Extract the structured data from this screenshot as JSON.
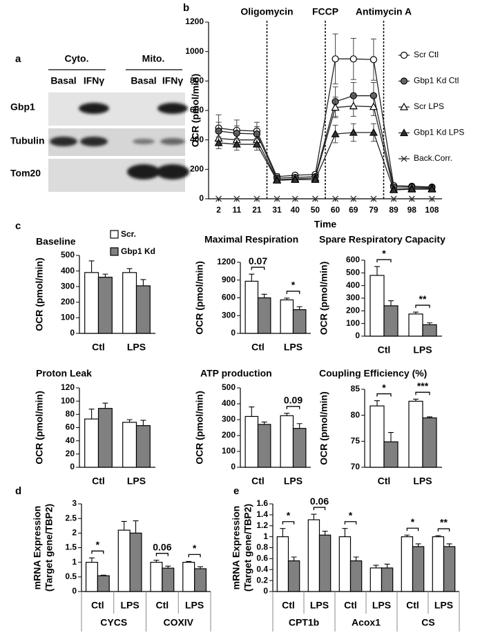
{
  "blot": {
    "panel": "a",
    "groups": [
      "Cyto.",
      "Mito."
    ],
    "lanes": [
      "Basal",
      "IFNγ",
      "Basal",
      "IFNγ"
    ],
    "rows": [
      "Gbp1",
      "Tubulin",
      "Tom20"
    ]
  },
  "chart_data": [
    {
      "type": "line",
      "panel": "b",
      "x_label": "Time",
      "y_label": "OCR (pmol/min)",
      "x": [
        2,
        11,
        21,
        31,
        40,
        50,
        60,
        69,
        79,
        89,
        98,
        108
      ],
      "xlim": [
        -3,
        113
      ],
      "xticks": [
        2,
        11,
        21,
        31,
        40,
        50,
        60,
        69,
        79,
        89,
        98,
        108
      ],
      "ylim": [
        0,
        1200
      ],
      "yticks": [
        0,
        200,
        400,
        600,
        800,
        1000,
        1200
      ],
      "annotations": [
        {
          "text": "Oligomycin",
          "x": 26
        },
        {
          "text": "FCCP",
          "x": 55
        },
        {
          "text": "Antimycin A",
          "x": 84
        }
      ],
      "legend": "upper right",
      "series": [
        {
          "name": "Scr Ctl",
          "marker": "circle",
          "color": "#ffffff",
          "values": [
            480,
            465,
            460,
            150,
            160,
            165,
            950,
            950,
            945,
            90,
            85,
            80
          ],
          "errors": [
            90,
            70,
            60,
            20,
            15,
            15,
            170,
            140,
            140,
            15,
            10,
            10
          ]
        },
        {
          "name": "Gbp1 Kd Ctl",
          "marker": "circle",
          "color": "#666666",
          "values": [
            460,
            445,
            440,
            140,
            145,
            150,
            660,
            700,
            700,
            80,
            80,
            75
          ],
          "errors": [
            60,
            50,
            50,
            15,
            15,
            15,
            100,
            90,
            90,
            10,
            10,
            10
          ]
        },
        {
          "name": "Scr LPS",
          "marker": "triangle",
          "color": "#ffffff",
          "values": [
            410,
            400,
            400,
            130,
            135,
            140,
            620,
            630,
            625,
            65,
            70,
            70
          ],
          "errors": [
            50,
            40,
            40,
            15,
            15,
            15,
            70,
            70,
            60,
            10,
            10,
            10
          ]
        },
        {
          "name": "Gbp1 Kd LPS",
          "marker": "triangle",
          "color": "#333333",
          "values": [
            380,
            370,
            370,
            125,
            130,
            130,
            440,
            450,
            450,
            60,
            65,
            65
          ],
          "errors": [
            40,
            40,
            40,
            10,
            10,
            10,
            60,
            60,
            60,
            10,
            10,
            10
          ]
        },
        {
          "name": "Back.Corr.",
          "marker": "x",
          "color": "#333333",
          "values": [
            0,
            0,
            0,
            0,
            0,
            0,
            0,
            0,
            0,
            0,
            0,
            0
          ]
        }
      ]
    },
    {
      "type": "bar",
      "panel": "c",
      "title": "Baseline",
      "y_label": "OCR (pmol/min)",
      "categories": [
        "Ctl",
        "LPS"
      ],
      "ylim": [
        0,
        500
      ],
      "yticks": [
        0,
        100,
        200,
        300,
        400,
        500
      ],
      "series": [
        {
          "name": "Scr.",
          "color": "#ffffff",
          "values": [
            390,
            390
          ],
          "errors": [
            75,
            25
          ]
        },
        {
          "name": "Gbp1 Kd",
          "color": "#808080",
          "values": [
            360,
            305
          ],
          "errors": [
            20,
            40
          ]
        }
      ]
    },
    {
      "type": "bar",
      "title": "Maximal Respiration",
      "y_label": "OCR (pmol/min)",
      "categories": [
        "Ctl",
        "LPS"
      ],
      "ylim": [
        0,
        1200
      ],
      "yticks": [
        0,
        300,
        600,
        900,
        1200
      ],
      "significance": [
        "0.07",
        "*"
      ],
      "series": [
        {
          "color": "#ffffff",
          "values": [
            880,
            565
          ],
          "errors": [
            120,
            30
          ]
        },
        {
          "color": "#808080",
          "values": [
            600,
            400
          ],
          "errors": [
            60,
            50
          ]
        }
      ]
    },
    {
      "type": "bar",
      "title": "Spare Respiratory Capacity",
      "y_label": "OCR (pmol/min)",
      "categories": [
        "Ctl",
        "LPS"
      ],
      "ylim": [
        0,
        600
      ],
      "yticks": [
        0,
        100,
        200,
        300,
        400,
        500,
        600
      ],
      "significance": [
        "*",
        "**"
      ],
      "series": [
        {
          "color": "#ffffff",
          "values": [
            480,
            175
          ],
          "errors": [
            70,
            15
          ]
        },
        {
          "color": "#808080",
          "values": [
            240,
            90
          ],
          "errors": [
            40,
            15
          ]
        }
      ]
    },
    {
      "type": "bar",
      "title": "Proton Leak",
      "y_label": "OCR (pmol/min)",
      "categories": [
        "Ctl",
        "LPS"
      ],
      "ylim": [
        0,
        120
      ],
      "yticks": [
        0,
        20,
        40,
        60,
        80,
        100,
        120
      ],
      "series": [
        {
          "color": "#ffffff",
          "values": [
            73,
            68
          ],
          "errors": [
            15,
            4
          ]
        },
        {
          "color": "#808080",
          "values": [
            89,
            63
          ],
          "errors": [
            8,
            8
          ]
        }
      ]
    },
    {
      "type": "bar",
      "title": "ATP production",
      "y_label": "OCR (pmol/min)",
      "categories": [
        "Ctl",
        "LPS"
      ],
      "ylim": [
        0,
        500
      ],
      "yticks": [
        0,
        100,
        200,
        300,
        400,
        500
      ],
      "significance": [
        null,
        "0.09"
      ],
      "series": [
        {
          "color": "#ffffff",
          "values": [
            320,
            325
          ],
          "errors": [
            60,
            15
          ]
        },
        {
          "color": "#808080",
          "values": [
            270,
            245
          ],
          "errors": [
            15,
            30
          ]
        }
      ]
    },
    {
      "type": "bar",
      "title": "Coupling Efficiency (%)",
      "y_label": "OCR (pmol/min)",
      "categories": [
        "Ctl",
        "LPS"
      ],
      "ylim": [
        70,
        85
      ],
      "yticks": [
        70,
        75,
        80,
        85
      ],
      "significance": [
        "*",
        "***"
      ],
      "series": [
        {
          "color": "#ffffff",
          "values": [
            81.8,
            82.7
          ],
          "errors": [
            1,
            0.4
          ]
        },
        {
          "color": "#808080",
          "values": [
            74.9,
            79.5
          ],
          "errors": [
            1.8,
            0.2
          ]
        }
      ]
    },
    {
      "type": "bar",
      "panel": "d",
      "y_label": [
        "mRNA Expression",
        "(Target gene/TBP2)"
      ],
      "categories": [
        "Ctl",
        "LPS",
        "Ctl",
        "LPS"
      ],
      "groups": [
        "CYCS",
        "COXIV"
      ],
      "ylim": [
        0,
        3
      ],
      "yticks": [
        0,
        0.5,
        1,
        1.5,
        2,
        2.5,
        3
      ],
      "significance": [
        "*",
        null,
        "0.06",
        "*"
      ],
      "series": [
        {
          "color": "#ffffff",
          "values": [
            1.0,
            2.1,
            1.0,
            1.0
          ],
          "errors": [
            0.15,
            0.3,
            0.07,
            0.03
          ]
        },
        {
          "color": "#808080",
          "values": [
            0.54,
            2.0,
            0.8,
            0.78
          ],
          "errors": [
            0.02,
            0.42,
            0.07,
            0.07
          ]
        }
      ]
    },
    {
      "type": "bar",
      "panel": "e",
      "y_label": [
        "mRNA Expression",
        "(Target gene/TBP2)"
      ],
      "categories": [
        "Ctl",
        "LPS",
        "Ctl",
        "LPS",
        "Ctl",
        "LPS"
      ],
      "groups": [
        "CPT1b",
        "Acox1",
        "CS"
      ],
      "ylim": [
        0,
        1.6
      ],
      "yticks": [
        0,
        0.2,
        0.4,
        0.6,
        0.8,
        1,
        1.2,
        1.4,
        1.6
      ],
      "significance": [
        "*",
        "0.06",
        "*",
        null,
        "*",
        "**"
      ],
      "series": [
        {
          "color": "#ffffff",
          "values": [
            1.0,
            1.31,
            1.0,
            0.43,
            1.0,
            1.0
          ],
          "errors": [
            0.15,
            0.1,
            0.15,
            0.05,
            0.03,
            0.02
          ]
        },
        {
          "color": "#808080",
          "values": [
            0.56,
            1.03,
            0.56,
            0.43,
            0.82,
            0.82
          ],
          "errors": [
            0.07,
            0.07,
            0.07,
            0.07,
            0.05,
            0.05
          ]
        }
      ]
    }
  ]
}
